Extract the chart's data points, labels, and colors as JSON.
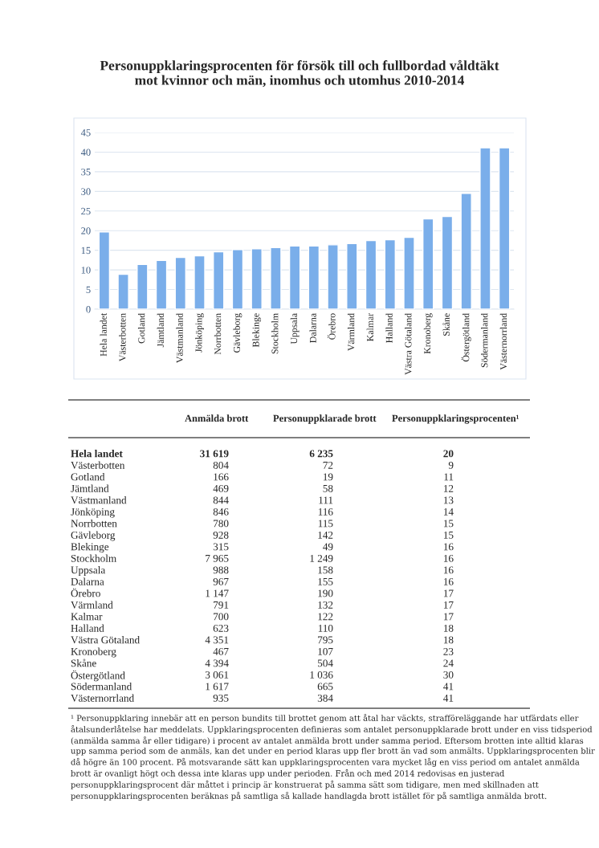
{
  "chart_data": [
    {
      "type": "bar",
      "title": "Personuppklaringsprocenten för försök till och fullbordad våldtäkt\nmot kvinnor och män, inomhus och utomhus 2010-2014",
      "categories": [
        "Hela landet",
        "Västerbotten",
        "Gotland",
        "Jämtland",
        "Västmanland",
        "Jönköping",
        "Norrbotten",
        "Gävleborg",
        "Blekinge",
        "Stockholm",
        "Uppsala",
        "Dalarna",
        "Örebro",
        "Värmland",
        "Kalmar",
        "Halland",
        "Västra Götaland",
        "Kronoberg",
        "Skåne",
        "Östergötland",
        "Södermanland",
        "Västernorrland"
      ],
      "values": [
        19.7,
        8.9,
        11.4,
        12.4,
        13.2,
        13.6,
        14.6,
        15.2,
        15.4,
        15.7,
        16.1,
        16.1,
        16.4,
        16.7,
        17.5,
        17.7,
        18.3,
        23.0,
        23.6,
        29.5,
        41.1,
        41.1
      ],
      "color": "#7aaeea",
      "ylim": [
        0,
        45
      ],
      "yticks": [
        0,
        5,
        10,
        15,
        20,
        25,
        30,
        35,
        40,
        45
      ],
      "grid": "y"
    },
    {
      "type": "other",
      "categories": [
        "Hela landet",
        "Västerbotten",
        "Gotland",
        "Jämtland",
        "Västmanland",
        "Jönköping",
        "Norrbotten",
        "Gävleborg",
        "Blekinge",
        "Stockholm",
        "Uppsala",
        "Dalarna",
        "Örebro",
        "Värmland",
        "Kalmar",
        "Halland",
        "Västra Götaland",
        "Kronoberg",
        "Skåne",
        "Östergötland",
        "Södermanland",
        "Västernorrland"
      ],
      "data_labels": true,
      "series": [
        {
          "name": "Anmälda brott",
          "values": [
            31619,
            804,
            166,
            469,
            844,
            846,
            780,
            928,
            315,
            7965,
            988,
            967,
            1147,
            791,
            700,
            623,
            4351,
            467,
            4394,
            3061,
            1617,
            935
          ]
        },
        {
          "name": "Personuppklarade brott",
          "values": [
            6235,
            72,
            19,
            58,
            111,
            116,
            115,
            142,
            49,
            1249,
            158,
            155,
            190,
            132,
            122,
            110,
            795,
            107,
            504,
            1036,
            665,
            384
          ]
        },
        {
          "name": "Personuppklaringsprocenten¹",
          "values": [
            20,
            9,
            11,
            12,
            13,
            14,
            15,
            15,
            16,
            16,
            16,
            16,
            17,
            17,
            17,
            18,
            18,
            23,
            24,
            30,
            41,
            41
          ]
        }
      ],
      "annotations": [
        "¹ Personuppklaring innebär att en person bundits till brottet genom att åtal har väckts, strafföreläggande har utfärdats eller åtalsunderlåtelse har meddelats. Uppklaringsprocenten definieras som antalet personuppklarade brott under en viss tidsperiod (anmälda samma år eller tidigare) i procent av antalet anmälda brott under samma period. Eftersom brotten inte alltid klaras upp samma period som de anmäls, kan det under en period klaras upp fler brott än vad som anmälts. Uppklaringsprocenten blir då högre än 100 procent. På motsvarande sätt kan uppklaringsprocenten vara mycket låg en viss period om antalet anmälda brott är ovanligt högt och dessa inte klaras upp under perioden. Från och med 2014 redovisas en justerad personuppklaringsprocent där måttet i princip är konstruerat på samma sätt som tidigare, men med skillnaden att personuppklaringsprocenten beräknas på samtliga så kallade handlagda brott istället för på samtliga anmälda brott."
      ]
    }
  ]
}
